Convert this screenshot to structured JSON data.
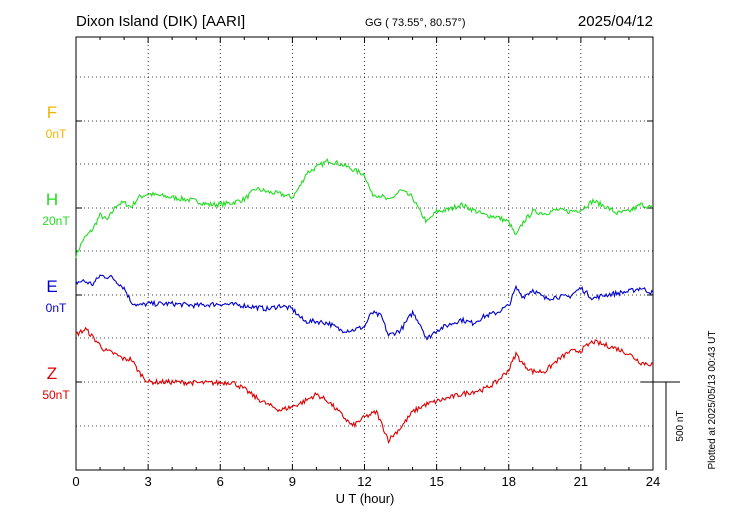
{
  "header": {
    "station": "Dixon Island (DIK)  [AARI]",
    "coords": "GG ( 73.55°,  80.57°)",
    "date": "2025/04/12"
  },
  "footer": {
    "plotted": "Plotted at 2025/05/13 00:43 UT",
    "scale_label": "500 nT"
  },
  "chart_data": {
    "type": "line",
    "xlabel": "U T (hour)",
    "xlim": [
      0,
      24
    ],
    "x_ticks": [
      "0",
      "3",
      "6",
      "9",
      "12",
      "15",
      "18",
      "21",
      "24"
    ],
    "grid": true,
    "scale_bar_nT": 500,
    "colors": {
      "F": "#f0b400",
      "H": "#22dd22",
      "E": "#0000cc",
      "Z": "#dd0000"
    },
    "series": [
      {
        "name": "F",
        "offset_label": "0nT",
        "points": []
      },
      {
        "name": "H",
        "offset_label": "20nT",
        "points": [
          [
            0,
            -270
          ],
          [
            0.3,
            -180
          ],
          [
            0.7,
            -120
          ],
          [
            1.0,
            -40
          ],
          [
            1.3,
            -70
          ],
          [
            1.7,
            20
          ],
          [
            2.0,
            30
          ],
          [
            2.3,
            5
          ],
          [
            2.6,
            60
          ],
          [
            3.0,
            80
          ],
          [
            3.5,
            70
          ],
          [
            4.0,
            60
          ],
          [
            4.5,
            50
          ],
          [
            5.0,
            40
          ],
          [
            5.5,
            20
          ],
          [
            6.0,
            20
          ],
          [
            6.5,
            30
          ],
          [
            7.0,
            50
          ],
          [
            7.5,
            110
          ],
          [
            8.0,
            90
          ],
          [
            8.5,
            80
          ],
          [
            9.0,
            60
          ],
          [
            9.3,
            120
          ],
          [
            9.6,
            200
          ],
          [
            10.0,
            230
          ],
          [
            10.5,
            270
          ],
          [
            11.0,
            250
          ],
          [
            11.5,
            220
          ],
          [
            12.0,
            190
          ],
          [
            12.3,
            80
          ],
          [
            12.7,
            70
          ],
          [
            13.0,
            40
          ],
          [
            13.5,
            100
          ],
          [
            14.0,
            60
          ],
          [
            14.3,
            -20
          ],
          [
            14.6,
            -80
          ],
          [
            15.0,
            -20
          ],
          [
            15.5,
            -10
          ],
          [
            16.0,
            20
          ],
          [
            16.5,
            -10
          ],
          [
            17.0,
            -40
          ],
          [
            17.5,
            -50
          ],
          [
            18.0,
            -80
          ],
          [
            18.3,
            -160
          ],
          [
            18.6,
            -80
          ],
          [
            19.0,
            -20
          ],
          [
            19.5,
            -30
          ],
          [
            20.0,
            -10
          ],
          [
            20.5,
            -20
          ],
          [
            21.0,
            -10
          ],
          [
            21.5,
            40
          ],
          [
            22.0,
            10
          ],
          [
            22.5,
            -30
          ],
          [
            23.0,
            -20
          ],
          [
            23.5,
            20
          ],
          [
            24.0,
            0
          ]
        ]
      },
      {
        "name": "E",
        "offset_label": "0nT",
        "points": [
          [
            0,
            70
          ],
          [
            0.3,
            80
          ],
          [
            0.7,
            60
          ],
          [
            1.0,
            110
          ],
          [
            1.5,
            100
          ],
          [
            2.0,
            40
          ],
          [
            2.3,
            -40
          ],
          [
            2.6,
            -60
          ],
          [
            3.0,
            -50
          ],
          [
            4.0,
            -50
          ],
          [
            5.0,
            -60
          ],
          [
            6.0,
            -50
          ],
          [
            7.0,
            -60
          ],
          [
            8.0,
            -80
          ],
          [
            8.5,
            -60
          ],
          [
            9.0,
            -80
          ],
          [
            9.5,
            -150
          ],
          [
            10.0,
            -150
          ],
          [
            10.5,
            -160
          ],
          [
            11.0,
            -200
          ],
          [
            11.5,
            -200
          ],
          [
            12.0,
            -180
          ],
          [
            12.3,
            -100
          ],
          [
            12.7,
            -120
          ],
          [
            13.0,
            -230
          ],
          [
            13.5,
            -200
          ],
          [
            14.0,
            -100
          ],
          [
            14.3,
            -160
          ],
          [
            14.6,
            -250
          ],
          [
            15.0,
            -200
          ],
          [
            15.5,
            -170
          ],
          [
            16.0,
            -140
          ],
          [
            16.5,
            -160
          ],
          [
            17.0,
            -120
          ],
          [
            17.5,
            -100
          ],
          [
            18.0,
            -60
          ],
          [
            18.3,
            40
          ],
          [
            18.6,
            -10
          ],
          [
            19.0,
            30
          ],
          [
            19.5,
            -20
          ],
          [
            20.0,
            -10
          ],
          [
            20.5,
            -10
          ],
          [
            21.0,
            40
          ],
          [
            21.5,
            -20
          ],
          [
            22.0,
            0
          ],
          [
            22.5,
            10
          ],
          [
            23.0,
            20
          ],
          [
            23.5,
            40
          ],
          [
            24.0,
            10
          ]
        ]
      },
      {
        "name": "Z",
        "offset_label": "50nT",
        "points": [
          [
            0,
            270
          ],
          [
            0.4,
            300
          ],
          [
            0.8,
            240
          ],
          [
            1.2,
            180
          ],
          [
            1.6,
            160
          ],
          [
            2.0,
            130
          ],
          [
            2.3,
            130
          ],
          [
            2.6,
            60
          ],
          [
            3.0,
            0
          ],
          [
            4.0,
            0
          ],
          [
            5.0,
            -5
          ],
          [
            6.0,
            -5
          ],
          [
            6.5,
            0
          ],
          [
            7.0,
            -40
          ],
          [
            7.5,
            -90
          ],
          [
            8.0,
            -130
          ],
          [
            8.5,
            -160
          ],
          [
            9.0,
            -140
          ],
          [
            9.5,
            -110
          ],
          [
            10.0,
            -70
          ],
          [
            10.5,
            -110
          ],
          [
            11.0,
            -180
          ],
          [
            11.5,
            -250
          ],
          [
            12.0,
            -200
          ],
          [
            12.5,
            -170
          ],
          [
            13.0,
            -330
          ],
          [
            13.5,
            -260
          ],
          [
            14.0,
            -170
          ],
          [
            14.5,
            -130
          ],
          [
            15.0,
            -110
          ],
          [
            16.0,
            -70
          ],
          [
            17.0,
            -40
          ],
          [
            17.5,
            0
          ],
          [
            18.0,
            70
          ],
          [
            18.3,
            160
          ],
          [
            18.6,
            100
          ],
          [
            19.0,
            60
          ],
          [
            19.5,
            60
          ],
          [
            20.0,
            120
          ],
          [
            20.5,
            170
          ],
          [
            21.0,
            180
          ],
          [
            21.5,
            230
          ],
          [
            22.0,
            210
          ],
          [
            22.5,
            190
          ],
          [
            23.0,
            160
          ],
          [
            23.5,
            110
          ],
          [
            24.0,
            100
          ]
        ]
      }
    ]
  }
}
